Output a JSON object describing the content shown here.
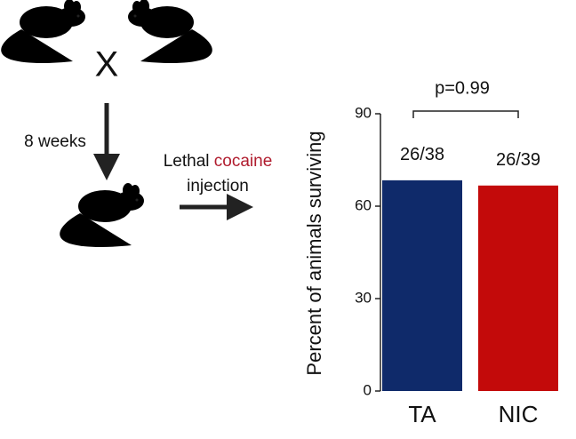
{
  "chart_data": {
    "type": "bar",
    "y_label": "Percent of animals surviving",
    "categories": [
      "TA",
      "NIC"
    ],
    "values": [
      68.4,
      66.7
    ],
    "value_labels": [
      "26/38",
      "26/39"
    ],
    "colors": [
      "#0f2a6a",
      "#c30a0a"
    ],
    "ylim": [
      0,
      90
    ],
    "yticks": [
      0,
      30,
      60,
      90
    ],
    "annotations": {
      "cross": "X",
      "duration": "8 weeks",
      "treatment_1": "Lethal",
      "treatment_2": "cocaine",
      "treatment_3": "injection",
      "p_value": "p=0.99"
    }
  }
}
